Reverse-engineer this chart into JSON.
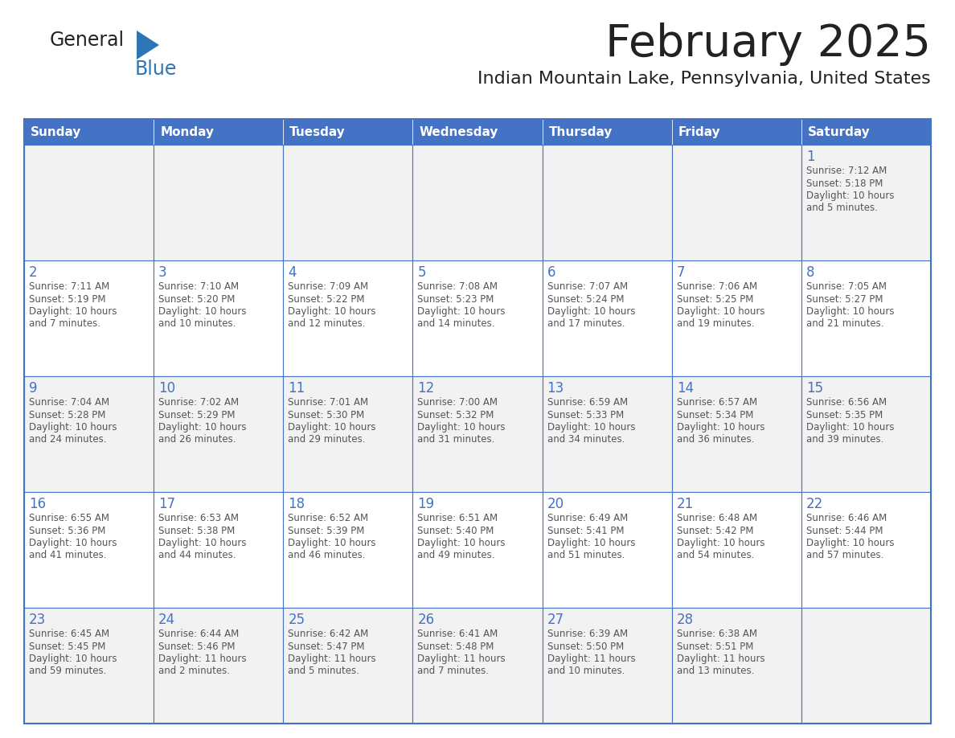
{
  "title": "February 2025",
  "subtitle": "Indian Mountain Lake, Pennsylvania, United States",
  "header_bg": "#4472C4",
  "header_text_color": "#FFFFFF",
  "cell_bg_odd": "#F2F2F2",
  "cell_bg_even": "#FFFFFF",
  "border_color": "#4472C4",
  "day_headers": [
    "Sunday",
    "Monday",
    "Tuesday",
    "Wednesday",
    "Thursday",
    "Friday",
    "Saturday"
  ],
  "title_color": "#222222",
  "subtitle_color": "#222222",
  "day_num_color": "#4472C4",
  "info_color": "#555555",
  "logo_general_color": "#222222",
  "logo_blue_color": "#2E75B6",
  "weeks": [
    [
      {
        "day": null,
        "sunrise": null,
        "sunset": null,
        "daylight": null
      },
      {
        "day": null,
        "sunrise": null,
        "sunset": null,
        "daylight": null
      },
      {
        "day": null,
        "sunrise": null,
        "sunset": null,
        "daylight": null
      },
      {
        "day": null,
        "sunrise": null,
        "sunset": null,
        "daylight": null
      },
      {
        "day": null,
        "sunrise": null,
        "sunset": null,
        "daylight": null
      },
      {
        "day": null,
        "sunrise": null,
        "sunset": null,
        "daylight": null
      },
      {
        "day": 1,
        "sunrise": "7:12 AM",
        "sunset": "5:18 PM",
        "daylight_line1": "Daylight: 10 hours",
        "daylight_line2": "and 5 minutes."
      }
    ],
    [
      {
        "day": 2,
        "sunrise": "7:11 AM",
        "sunset": "5:19 PM",
        "daylight_line1": "Daylight: 10 hours",
        "daylight_line2": "and 7 minutes."
      },
      {
        "day": 3,
        "sunrise": "7:10 AM",
        "sunset": "5:20 PM",
        "daylight_line1": "Daylight: 10 hours",
        "daylight_line2": "and 10 minutes."
      },
      {
        "day": 4,
        "sunrise": "7:09 AM",
        "sunset": "5:22 PM",
        "daylight_line1": "Daylight: 10 hours",
        "daylight_line2": "and 12 minutes."
      },
      {
        "day": 5,
        "sunrise": "7:08 AM",
        "sunset": "5:23 PM",
        "daylight_line1": "Daylight: 10 hours",
        "daylight_line2": "and 14 minutes."
      },
      {
        "day": 6,
        "sunrise": "7:07 AM",
        "sunset": "5:24 PM",
        "daylight_line1": "Daylight: 10 hours",
        "daylight_line2": "and 17 minutes."
      },
      {
        "day": 7,
        "sunrise": "7:06 AM",
        "sunset": "5:25 PM",
        "daylight_line1": "Daylight: 10 hours",
        "daylight_line2": "and 19 minutes."
      },
      {
        "day": 8,
        "sunrise": "7:05 AM",
        "sunset": "5:27 PM",
        "daylight_line1": "Daylight: 10 hours",
        "daylight_line2": "and 21 minutes."
      }
    ],
    [
      {
        "day": 9,
        "sunrise": "7:04 AM",
        "sunset": "5:28 PM",
        "daylight_line1": "Daylight: 10 hours",
        "daylight_line2": "and 24 minutes."
      },
      {
        "day": 10,
        "sunrise": "7:02 AM",
        "sunset": "5:29 PM",
        "daylight_line1": "Daylight: 10 hours",
        "daylight_line2": "and 26 minutes."
      },
      {
        "day": 11,
        "sunrise": "7:01 AM",
        "sunset": "5:30 PM",
        "daylight_line1": "Daylight: 10 hours",
        "daylight_line2": "and 29 minutes."
      },
      {
        "day": 12,
        "sunrise": "7:00 AM",
        "sunset": "5:32 PM",
        "daylight_line1": "Daylight: 10 hours",
        "daylight_line2": "and 31 minutes."
      },
      {
        "day": 13,
        "sunrise": "6:59 AM",
        "sunset": "5:33 PM",
        "daylight_line1": "Daylight: 10 hours",
        "daylight_line2": "and 34 minutes."
      },
      {
        "day": 14,
        "sunrise": "6:57 AM",
        "sunset": "5:34 PM",
        "daylight_line1": "Daylight: 10 hours",
        "daylight_line2": "and 36 minutes."
      },
      {
        "day": 15,
        "sunrise": "6:56 AM",
        "sunset": "5:35 PM",
        "daylight_line1": "Daylight: 10 hours",
        "daylight_line2": "and 39 minutes."
      }
    ],
    [
      {
        "day": 16,
        "sunrise": "6:55 AM",
        "sunset": "5:36 PM",
        "daylight_line1": "Daylight: 10 hours",
        "daylight_line2": "and 41 minutes."
      },
      {
        "day": 17,
        "sunrise": "6:53 AM",
        "sunset": "5:38 PM",
        "daylight_line1": "Daylight: 10 hours",
        "daylight_line2": "and 44 minutes."
      },
      {
        "day": 18,
        "sunrise": "6:52 AM",
        "sunset": "5:39 PM",
        "daylight_line1": "Daylight: 10 hours",
        "daylight_line2": "and 46 minutes."
      },
      {
        "day": 19,
        "sunrise": "6:51 AM",
        "sunset": "5:40 PM",
        "daylight_line1": "Daylight: 10 hours",
        "daylight_line2": "and 49 minutes."
      },
      {
        "day": 20,
        "sunrise": "6:49 AM",
        "sunset": "5:41 PM",
        "daylight_line1": "Daylight: 10 hours",
        "daylight_line2": "and 51 minutes."
      },
      {
        "day": 21,
        "sunrise": "6:48 AM",
        "sunset": "5:42 PM",
        "daylight_line1": "Daylight: 10 hours",
        "daylight_line2": "and 54 minutes."
      },
      {
        "day": 22,
        "sunrise": "6:46 AM",
        "sunset": "5:44 PM",
        "daylight_line1": "Daylight: 10 hours",
        "daylight_line2": "and 57 minutes."
      }
    ],
    [
      {
        "day": 23,
        "sunrise": "6:45 AM",
        "sunset": "5:45 PM",
        "daylight_line1": "Daylight: 10 hours",
        "daylight_line2": "and 59 minutes."
      },
      {
        "day": 24,
        "sunrise": "6:44 AM",
        "sunset": "5:46 PM",
        "daylight_line1": "Daylight: 11 hours",
        "daylight_line2": "and 2 minutes."
      },
      {
        "day": 25,
        "sunrise": "6:42 AM",
        "sunset": "5:47 PM",
        "daylight_line1": "Daylight: 11 hours",
        "daylight_line2": "and 5 minutes."
      },
      {
        "day": 26,
        "sunrise": "6:41 AM",
        "sunset": "5:48 PM",
        "daylight_line1": "Daylight: 11 hours",
        "daylight_line2": "and 7 minutes."
      },
      {
        "day": 27,
        "sunrise": "6:39 AM",
        "sunset": "5:50 PM",
        "daylight_line1": "Daylight: 11 hours",
        "daylight_line2": "and 10 minutes."
      },
      {
        "day": 28,
        "sunrise": "6:38 AM",
        "sunset": "5:51 PM",
        "daylight_line1": "Daylight: 11 hours",
        "daylight_line2": "and 13 minutes."
      },
      {
        "day": null,
        "sunrise": null,
        "sunset": null,
        "daylight_line1": null,
        "daylight_line2": null
      }
    ]
  ]
}
